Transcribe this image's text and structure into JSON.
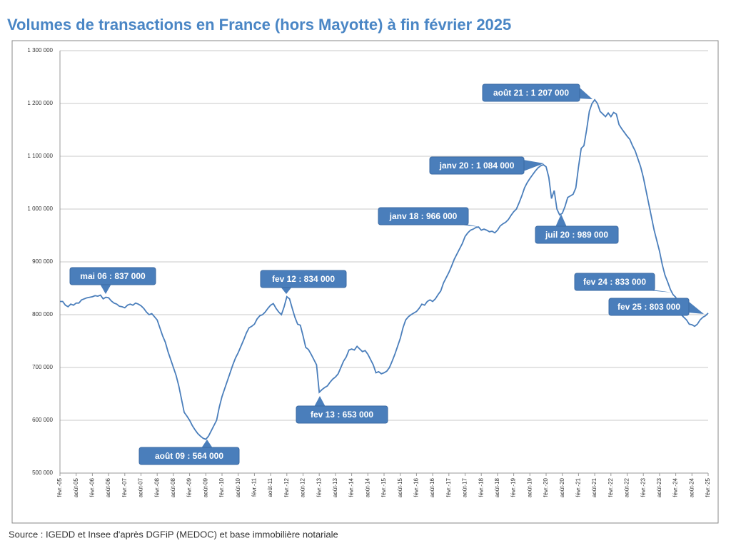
{
  "chart_data": {
    "type": "line",
    "title": "Volumes de transactions en France (hors Mayotte) à fin février 2025",
    "source": "Source : IGEDD et Insee d'après DGFiP (MEDOC) et base immobilière notariale",
    "color": "#4a7ebb",
    "grid": true,
    "ylim": [
      500000,
      1300000
    ],
    "yticks": [
      {
        "value": 500000,
        "label": "500 000"
      },
      {
        "value": 600000,
        "label": "600 000"
      },
      {
        "value": 700000,
        "label": "700 000"
      },
      {
        "value": 800000,
        "label": "800 000"
      },
      {
        "value": 900000,
        "label": "900 000"
      },
      {
        "value": 1000000,
        "label": "1 000 000"
      },
      {
        "value": 1100000,
        "label": "1 100 000"
      },
      {
        "value": 1200000,
        "label": "1 200 000"
      },
      {
        "value": 1300000,
        "label": "1 300 000"
      }
    ],
    "categories": [
      "févr.-05",
      null,
      null,
      null,
      null,
      null,
      "août-05",
      null,
      null,
      null,
      null,
      null,
      "févr.-06",
      null,
      null,
      null,
      null,
      null,
      "août-06",
      null,
      null,
      null,
      null,
      null,
      "févr.-07",
      null,
      null,
      null,
      null,
      null,
      "août-07",
      null,
      null,
      null,
      null,
      null,
      "févr.-08",
      null,
      null,
      null,
      null,
      null,
      "août-08",
      null,
      null,
      null,
      null,
      null,
      "févr.-09",
      null,
      null,
      null,
      null,
      null,
      "août-09",
      null,
      null,
      null,
      null,
      null,
      "févr.-10",
      null,
      null,
      null,
      null,
      null,
      "août-10",
      null,
      null,
      null,
      null,
      null,
      "févr.-11",
      null,
      null,
      null,
      null,
      null,
      "août-11",
      null,
      null,
      null,
      null,
      null,
      "févr.-12",
      null,
      null,
      null,
      null,
      null,
      "août-12",
      null,
      null,
      null,
      null,
      null,
      "févr.-13",
      null,
      null,
      null,
      null,
      null,
      "août-13",
      null,
      null,
      null,
      null,
      null,
      "févr.-14",
      null,
      null,
      null,
      null,
      null,
      "août-14",
      null,
      null,
      null,
      null,
      null,
      "févr.-15",
      null,
      null,
      null,
      null,
      null,
      "août-15",
      null,
      null,
      null,
      null,
      null,
      "févr.-16",
      null,
      null,
      null,
      null,
      null,
      "août-16",
      null,
      null,
      null,
      null,
      null,
      "févr.-17",
      null,
      null,
      null,
      null,
      null,
      "août-17",
      null,
      null,
      null,
      null,
      null,
      "févr.-18",
      null,
      null,
      null,
      null,
      null,
      "août-18",
      null,
      null,
      null,
      null,
      null,
      "févr.-19",
      null,
      null,
      null,
      null,
      null,
      "août-19",
      null,
      null,
      null,
      null,
      null,
      "févr.-20",
      null,
      null,
      null,
      null,
      null,
      "août-20",
      null,
      null,
      null,
      null,
      null,
      "févr.-21",
      null,
      null,
      null,
      null,
      null,
      "août-21",
      null,
      null,
      null,
      null,
      null,
      "févr.-22",
      null,
      null,
      null,
      null,
      null,
      "août-22",
      null,
      null,
      null,
      null,
      null,
      "févr.-23",
      null,
      null,
      null,
      null,
      null,
      "août-23",
      null,
      null,
      null,
      null,
      null,
      "févr.-24",
      null,
      null,
      null,
      null,
      null,
      "août-24",
      null,
      null,
      null,
      null,
      null,
      "févr.-25"
    ],
    "values": [
      825000,
      825000,
      818000,
      815000,
      820000,
      818000,
      822000,
      822000,
      828000,
      830000,
      832000,
      833000,
      834000,
      836000,
      835000,
      837000,
      830000,
      833000,
      832000,
      826000,
      822000,
      820000,
      816000,
      815000,
      813000,
      818000,
      820000,
      818000,
      822000,
      820000,
      817000,
      812000,
      805000,
      800000,
      802000,
      796000,
      790000,
      775000,
      760000,
      748000,
      730000,
      715000,
      700000,
      685000,
      665000,
      640000,
      615000,
      608000,
      600000,
      590000,
      582000,
      575000,
      570000,
      566000,
      564000,
      570000,
      580000,
      590000,
      600000,
      625000,
      645000,
      660000,
      675000,
      690000,
      705000,
      718000,
      728000,
      740000,
      752000,
      765000,
      775000,
      778000,
      782000,
      792000,
      798000,
      800000,
      805000,
      812000,
      818000,
      821000,
      812000,
      805000,
      800000,
      815000,
      834000,
      830000,
      812000,
      795000,
      782000,
      780000,
      760000,
      738000,
      734000,
      725000,
      715000,
      705000,
      653000,
      658000,
      662000,
      665000,
      672000,
      678000,
      682000,
      688000,
      700000,
      712000,
      720000,
      733000,
      735000,
      733000,
      740000,
      735000,
      730000,
      732000,
      725000,
      715000,
      705000,
      690000,
      692000,
      688000,
      690000,
      693000,
      700000,
      712000,
      725000,
      740000,
      755000,
      775000,
      790000,
      796000,
      800000,
      803000,
      806000,
      812000,
      820000,
      818000,
      825000,
      828000,
      825000,
      830000,
      838000,
      845000,
      860000,
      870000,
      880000,
      892000,
      905000,
      915000,
      925000,
      935000,
      948000,
      955000,
      960000,
      962000,
      965000,
      966000,
      960000,
      962000,
      960000,
      957000,
      958000,
      955000,
      960000,
      968000,
      972000,
      975000,
      980000,
      988000,
      995000,
      1000000,
      1012000,
      1025000,
      1040000,
      1050000,
      1058000,
      1065000,
      1072000,
      1078000,
      1082000,
      1084000,
      1080000,
      1060000,
      1020000,
      1035000,
      1000000,
      989000,
      992000,
      1005000,
      1022000,
      1025000,
      1028000,
      1040000,
      1080000,
      1115000,
      1120000,
      1150000,
      1185000,
      1200000,
      1207000,
      1200000,
      1185000,
      1180000,
      1175000,
      1182000,
      1175000,
      1183000,
      1180000,
      1160000,
      1152000,
      1145000,
      1138000,
      1132000,
      1120000,
      1110000,
      1095000,
      1080000,
      1060000,
      1035000,
      1010000,
      985000,
      960000,
      940000,
      920000,
      895000,
      875000,
      862000,
      848000,
      838000,
      833000,
      815000,
      800000,
      795000,
      790000,
      782000,
      781000,
      778000,
      782000,
      790000,
      795000,
      798000,
      803000
    ],
    "annotations": [
      "mai 06 : 837 000",
      "août 09 : 564 000",
      "fev 12 : 834 000",
      "fev 13 : 653 000",
      "janv  18 : 966 000",
      "janv 20 : 1 084 000",
      "juil 20 : 989 000",
      "août 21 : 1 207 000",
      "fev 24 : 833 000",
      "fev 25 : 803 000"
    ]
  }
}
